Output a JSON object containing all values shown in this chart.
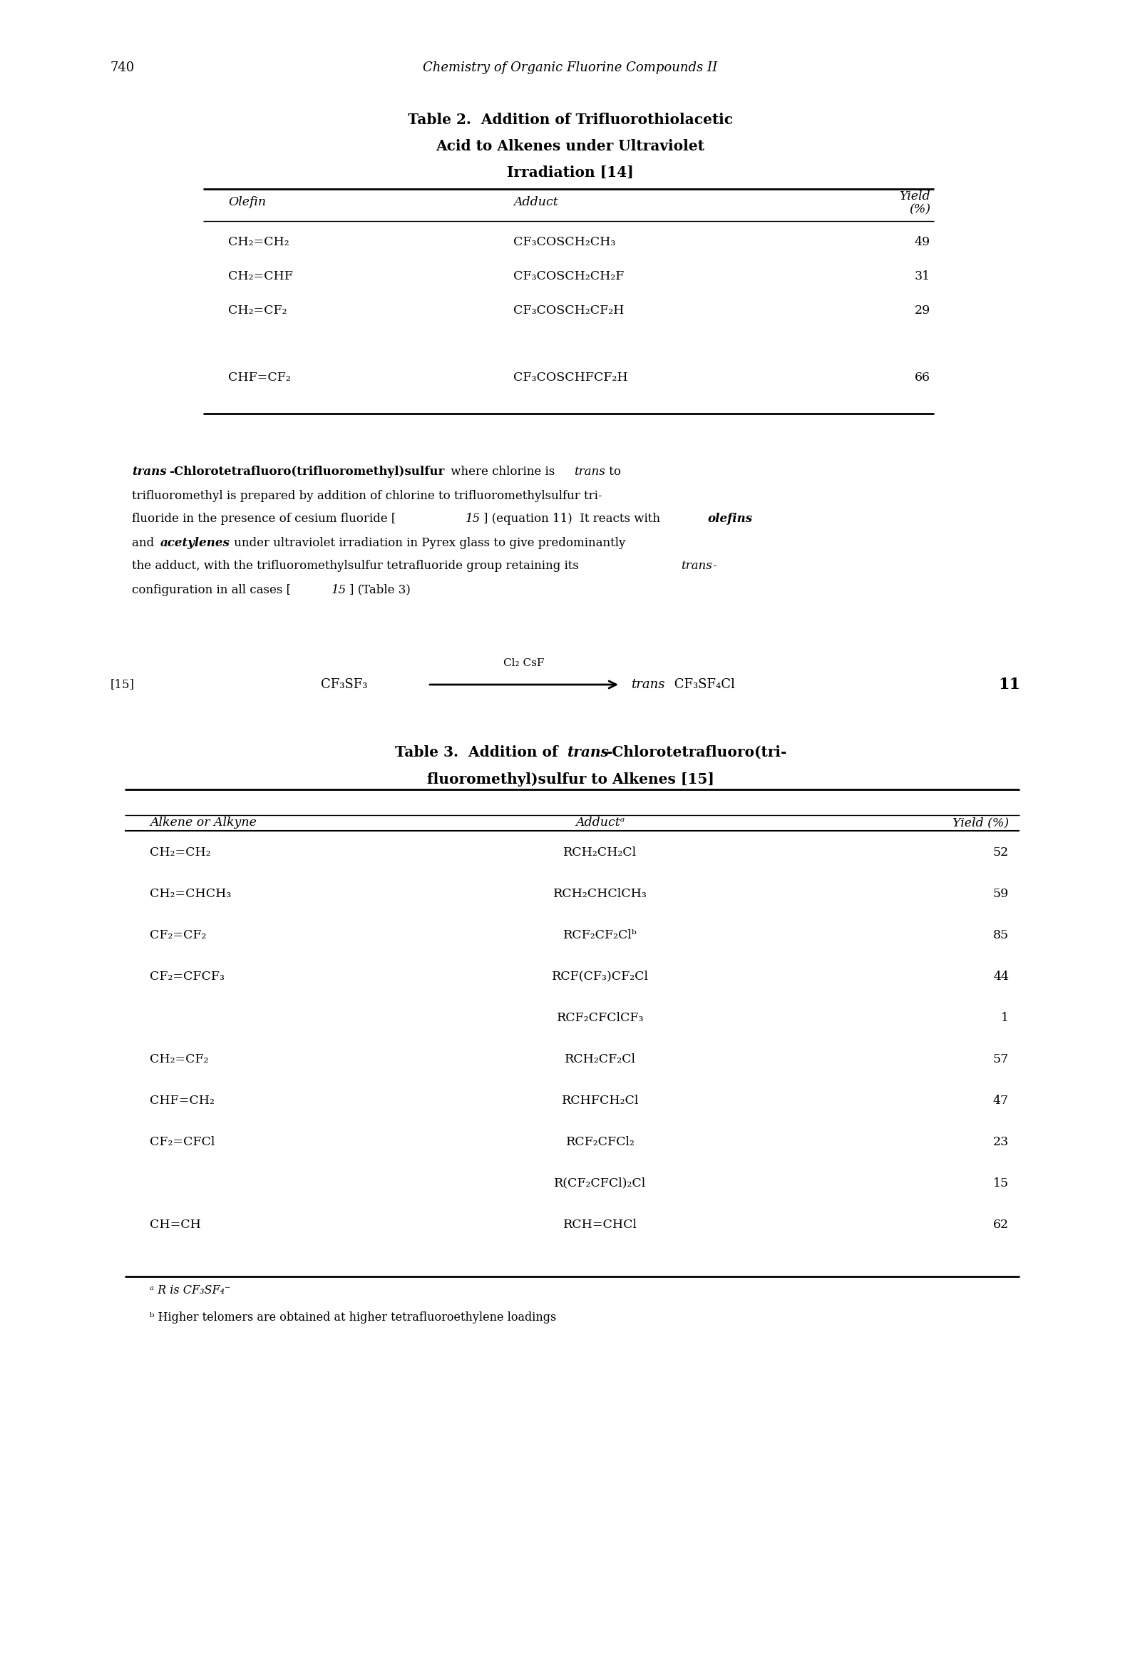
{
  "page_num": "740",
  "header_italic": "Chemistry of Organic Fluorine Compounds II",
  "bg_color": "#ffffff",
  "table2": {
    "title_line1": "Table 2.  Addition of Trifluorothiolacetic",
    "title_line2": "Acid to Alkenes under Ultraviolet",
    "title_line3": "Irradiation [14]",
    "rows": [
      [
        "CH₂=CH₂",
        "CF₃COSCH₂CH₃",
        "49"
      ],
      [
        "CH₂=CHF",
        "CF₃COSCH₂CH₂F",
        "31"
      ],
      [
        "CH₂=CF₂",
        "CF₃COSCH₂CF₂H",
        "29"
      ],
      [
        "CHF=CF₂",
        "CF₃COSCHFCF₂H",
        "66"
      ]
    ]
  },
  "equation": {
    "ref": "[15]",
    "reactant": "CF₃SF₃",
    "conditions": "Cl₂ CsF",
    "product_italic": "trans",
    "product_normal": " CF₃SF₄Cl",
    "number": "11"
  },
  "table3": {
    "title_bold_normal": "Table 3.  Addition of ",
    "title_bold_italic": "trans",
    "title_bold_normal2": "-Chlorotetrafluoro(tri-",
    "title_line2": "fluoromethyl)sulfur to Alkenes [15]",
    "rows": [
      [
        "CH₂=CH₂",
        "RCH₂CH₂Cl",
        "52"
      ],
      [
        "CH₂=CHCH₃",
        "RCH₂CHClCH₃",
        "59"
      ],
      [
        "CF₂=CF₂",
        "RCF₂CF₂Clᵇ",
        "85"
      ],
      [
        "CF₂=CFCF₃",
        "RCF(CF₃)CF₂Cl",
        "44"
      ],
      [
        "",
        "RCF₂CFClCF₃",
        "1"
      ],
      [
        "CH₂=CF₂",
        "RCH₂CF₂Cl",
        "57"
      ],
      [
        "CHF=CH₂",
        "RCHFCH₂Cl",
        "47"
      ],
      [
        "CF₂=CFCl",
        "RCF₂CFCl₂",
        "23"
      ],
      [
        "",
        "R(CF₂CFCl)₂Cl",
        "15"
      ],
      [
        "CH=CH",
        "RCH=CHCl",
        "62"
      ]
    ],
    "footnote_a": "ᵃ R is CF₃SF₄⁻",
    "footnote_b": "ᵇ Higher telomers are obtained at higher tetrafluoroethylene loadings"
  }
}
